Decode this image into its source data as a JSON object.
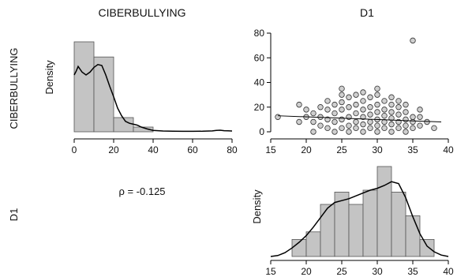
{
  "variables": [
    "CIBERBULLYING",
    "D1"
  ],
  "correlation_text": "ρ = -0.125",
  "chart_data": [
    {
      "type": "bar",
      "role": "histogram-with-density",
      "variable": "CIBERBULLYING",
      "ylabel": "Density",
      "xlim": [
        0,
        80
      ],
      "xticks": [
        0,
        20,
        40,
        60,
        80
      ],
      "bins": [
        {
          "start": 0,
          "end": 10,
          "height": 0.95
        },
        {
          "start": 10,
          "end": 20,
          "height": 0.79
        },
        {
          "start": 20,
          "end": 30,
          "height": 0.15
        },
        {
          "start": 30,
          "end": 40,
          "height": 0.05
        }
      ],
      "density": [
        [
          0,
          0.6
        ],
        [
          1,
          0.64
        ],
        [
          2,
          0.69
        ],
        [
          4,
          0.63
        ],
        [
          6,
          0.6
        ],
        [
          8,
          0.63
        ],
        [
          10,
          0.68
        ],
        [
          12,
          0.71
        ],
        [
          14,
          0.7
        ],
        [
          16,
          0.6
        ],
        [
          18,
          0.48
        ],
        [
          20,
          0.37
        ],
        [
          22,
          0.25
        ],
        [
          24,
          0.17
        ],
        [
          26,
          0.11
        ],
        [
          28,
          0.09
        ],
        [
          30,
          0.08
        ],
        [
          32,
          0.07
        ],
        [
          34,
          0.05
        ],
        [
          37,
          0.03
        ],
        [
          40,
          0.015
        ],
        [
          45,
          0.008
        ],
        [
          50,
          0.006
        ],
        [
          55,
          0.005
        ],
        [
          60,
          0.005
        ],
        [
          65,
          0.006
        ],
        [
          70,
          0.009
        ],
        [
          72,
          0.015
        ],
        [
          74,
          0.017
        ],
        [
          76,
          0.012
        ],
        [
          78,
          0.01
        ],
        [
          80,
          0.008
        ]
      ]
    },
    {
      "type": "scatter",
      "xlim": [
        15,
        40
      ],
      "ylim": [
        0,
        80
      ],
      "xticks": [
        15,
        20,
        25,
        30,
        35,
        40
      ],
      "yticks": [
        0,
        20,
        40,
        60,
        80
      ],
      "points": [
        [
          16,
          12
        ],
        [
          19,
          22
        ],
        [
          19,
          8
        ],
        [
          20,
          18
        ],
        [
          20,
          12
        ],
        [
          21,
          8
        ],
        [
          21,
          15
        ],
        [
          21,
          0
        ],
        [
          22,
          20
        ],
        [
          22,
          5
        ],
        [
          22,
          12
        ],
        [
          23,
          10
        ],
        [
          23,
          18
        ],
        [
          23,
          3
        ],
        [
          23,
          25
        ],
        [
          24,
          0
        ],
        [
          24,
          8
        ],
        [
          24,
          15
        ],
        [
          24,
          22
        ],
        [
          25,
          3
        ],
        [
          25,
          30
        ],
        [
          25,
          35
        ],
        [
          25,
          10
        ],
        [
          25,
          18
        ],
        [
          25,
          24
        ],
        [
          26,
          0
        ],
        [
          26,
          5
        ],
        [
          26,
          12
        ],
        [
          26,
          20
        ],
        [
          26,
          28
        ],
        [
          27,
          3
        ],
        [
          27,
          8
        ],
        [
          27,
          15
        ],
        [
          27,
          22
        ],
        [
          27,
          30
        ],
        [
          28,
          0
        ],
        [
          28,
          6
        ],
        [
          28,
          12
        ],
        [
          28,
          18
        ],
        [
          28,
          25
        ],
        [
          28,
          32
        ],
        [
          29,
          3
        ],
        [
          29,
          8
        ],
        [
          29,
          14
        ],
        [
          29,
          20
        ],
        [
          29,
          28
        ],
        [
          30,
          0
        ],
        [
          30,
          5
        ],
        [
          30,
          10
        ],
        [
          30,
          16
        ],
        [
          30,
          22
        ],
        [
          30,
          30
        ],
        [
          30,
          35
        ],
        [
          31,
          3
        ],
        [
          31,
          8
        ],
        [
          31,
          13
        ],
        [
          31,
          18
        ],
        [
          31,
          25
        ],
        [
          32,
          0
        ],
        [
          32,
          6
        ],
        [
          32,
          11
        ],
        [
          32,
          16
        ],
        [
          32,
          22
        ],
        [
          32,
          28
        ],
        [
          33,
          3
        ],
        [
          33,
          8
        ],
        [
          33,
          14
        ],
        [
          33,
          20
        ],
        [
          33,
          25
        ],
        [
          34,
          0
        ],
        [
          34,
          5
        ],
        [
          34,
          10
        ],
        [
          34,
          16
        ],
        [
          34,
          22
        ],
        [
          35,
          3
        ],
        [
          35,
          8
        ],
        [
          35,
          12
        ],
        [
          35,
          74
        ],
        [
          36,
          5
        ],
        [
          36,
          12
        ],
        [
          36,
          18
        ],
        [
          37,
          8
        ],
        [
          38,
          3
        ]
      ],
      "regression": [
        [
          16,
          13
        ],
        [
          39,
          8
        ]
      ]
    },
    {
      "type": "bar",
      "role": "histogram-with-density",
      "variable": "D1",
      "ylabel": "Density",
      "xlim": [
        15,
        40
      ],
      "xticks": [
        15,
        20,
        25,
        30,
        35,
        40
      ],
      "bins": [
        {
          "start": 18,
          "end": 20,
          "height": 0.18
        },
        {
          "start": 20,
          "end": 22,
          "height": 0.26
        },
        {
          "start": 22,
          "end": 24,
          "height": 0.55
        },
        {
          "start": 24,
          "end": 26,
          "height": 0.68
        },
        {
          "start": 26,
          "end": 28,
          "height": 0.55
        },
        {
          "start": 28,
          "end": 30,
          "height": 0.7
        },
        {
          "start": 30,
          "end": 32,
          "height": 0.95
        },
        {
          "start": 32,
          "end": 34,
          "height": 0.68
        },
        {
          "start": 34,
          "end": 36,
          "height": 0.43
        },
        {
          "start": 36,
          "end": 38,
          "height": 0.18
        }
      ],
      "density": [
        [
          15,
          0.0
        ],
        [
          16,
          0.01
        ],
        [
          17,
          0.04
        ],
        [
          18,
          0.09
        ],
        [
          19,
          0.15
        ],
        [
          20,
          0.22
        ],
        [
          21,
          0.31
        ],
        [
          22,
          0.41
        ],
        [
          23,
          0.51
        ],
        [
          24,
          0.57
        ],
        [
          25,
          0.59
        ],
        [
          26,
          0.61
        ],
        [
          27,
          0.64
        ],
        [
          28,
          0.67
        ],
        [
          29,
          0.7
        ],
        [
          30,
          0.72
        ],
        [
          31,
          0.75
        ],
        [
          32,
          0.79
        ],
        [
          33,
          0.77
        ],
        [
          34,
          0.62
        ],
        [
          35,
          0.42
        ],
        [
          36,
          0.24
        ],
        [
          37,
          0.11
        ],
        [
          38,
          0.05
        ],
        [
          39,
          0.015
        ],
        [
          40,
          0.0
        ]
      ]
    }
  ]
}
